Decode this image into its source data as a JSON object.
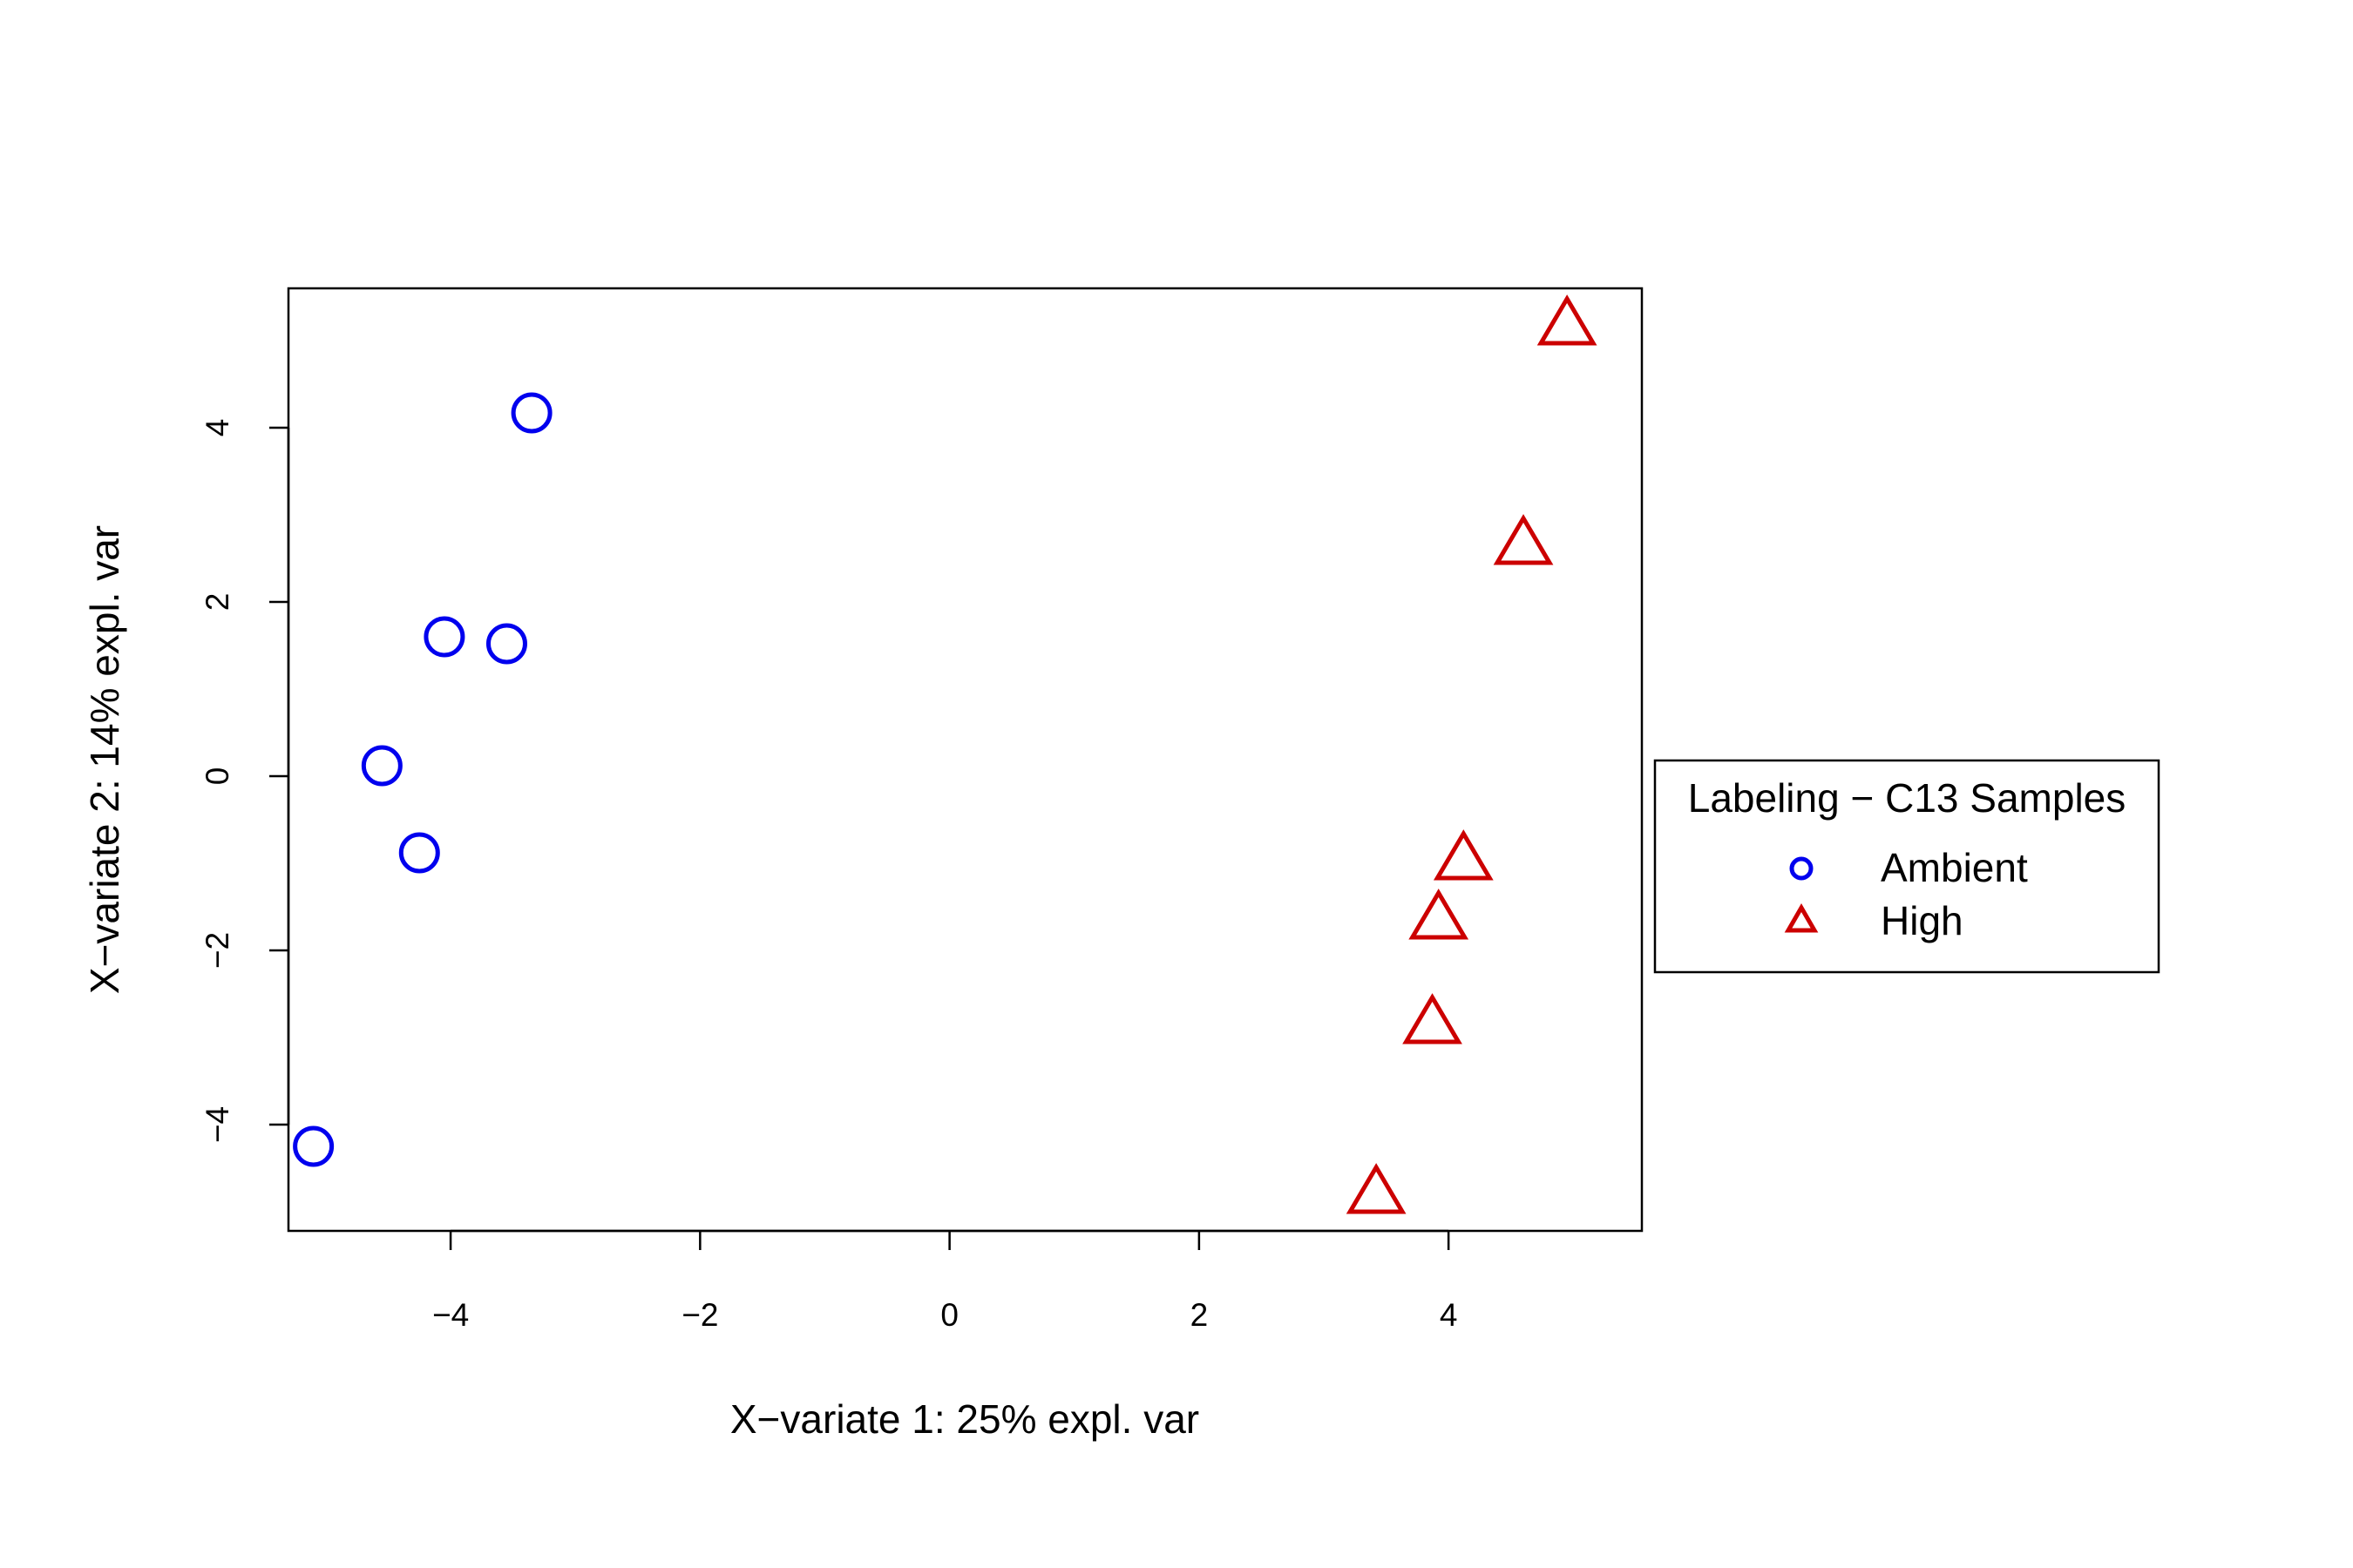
{
  "chart_data": {
    "type": "scatter",
    "title": "",
    "xlabel": "X−variate 1: 25% expl. var",
    "ylabel": "X−variate 2: 14% expl. var",
    "xlim": [
      -5.3,
      5.55
    ],
    "ylim": [
      -5.22,
      5.6
    ],
    "xticks": [
      -4,
      -2,
      0,
      2,
      4
    ],
    "yticks": [
      -4,
      -2,
      0,
      2,
      4
    ],
    "xtick_labels": [
      "−4",
      "−2",
      "0",
      "2",
      "4"
    ],
    "ytick_labels": [
      "−4",
      "−2",
      "0",
      "2",
      "4"
    ],
    "grid": false,
    "legend": {
      "title": "Labeling − C13 Samples",
      "placement": "right",
      "entries": [
        "Ambient",
        "High"
      ]
    },
    "series": [
      {
        "name": "Ambient",
        "marker": "circle",
        "color": "#0000ee",
        "x": [
          -3.35,
          -4.05,
          -3.55,
          -4.55,
          -4.25,
          -5.1
        ],
        "y": [
          4.17,
          1.6,
          1.52,
          0.12,
          -0.88,
          -4.25
        ]
      },
      {
        "name": "High",
        "marker": "triangle",
        "color": "#cc0000",
        "x": [
          4.95,
          4.6,
          4.12,
          3.92,
          3.87,
          3.42
        ],
        "y": [
          5.22,
          2.7,
          -0.92,
          -1.6,
          -2.8,
          -4.75
        ]
      }
    ]
  }
}
